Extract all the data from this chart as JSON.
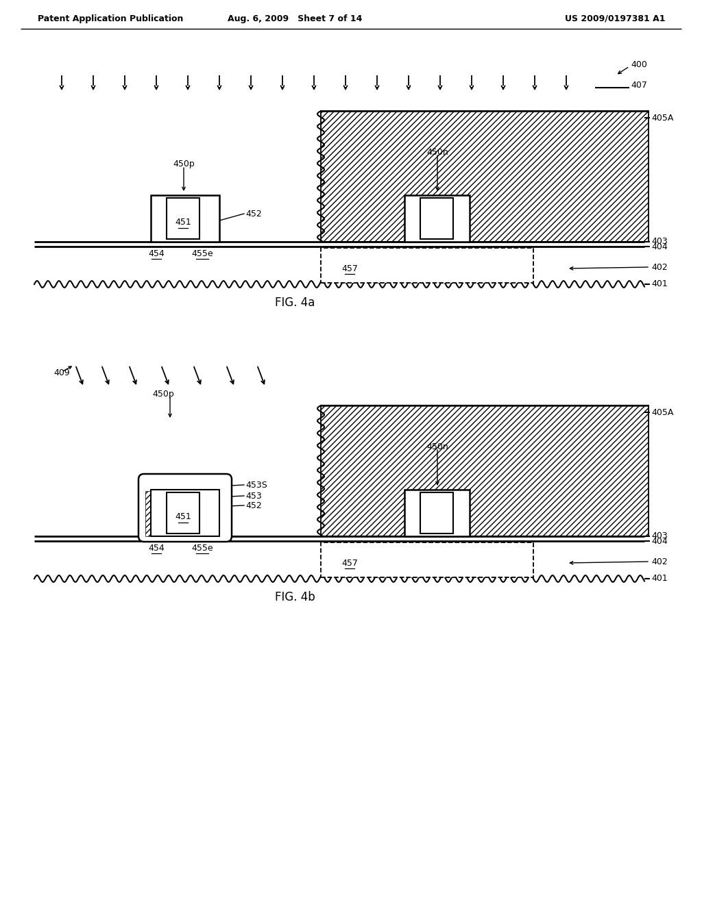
{
  "header_left": "Patent Application Publication",
  "header_mid": "Aug. 6, 2009   Sheet 7 of 14",
  "header_right": "US 2009/0197381 A1",
  "fig4a_label": "FIG. 4a",
  "fig4b_label": "FIG. 4b",
  "background": "#ffffff",
  "line_color": "#000000"
}
